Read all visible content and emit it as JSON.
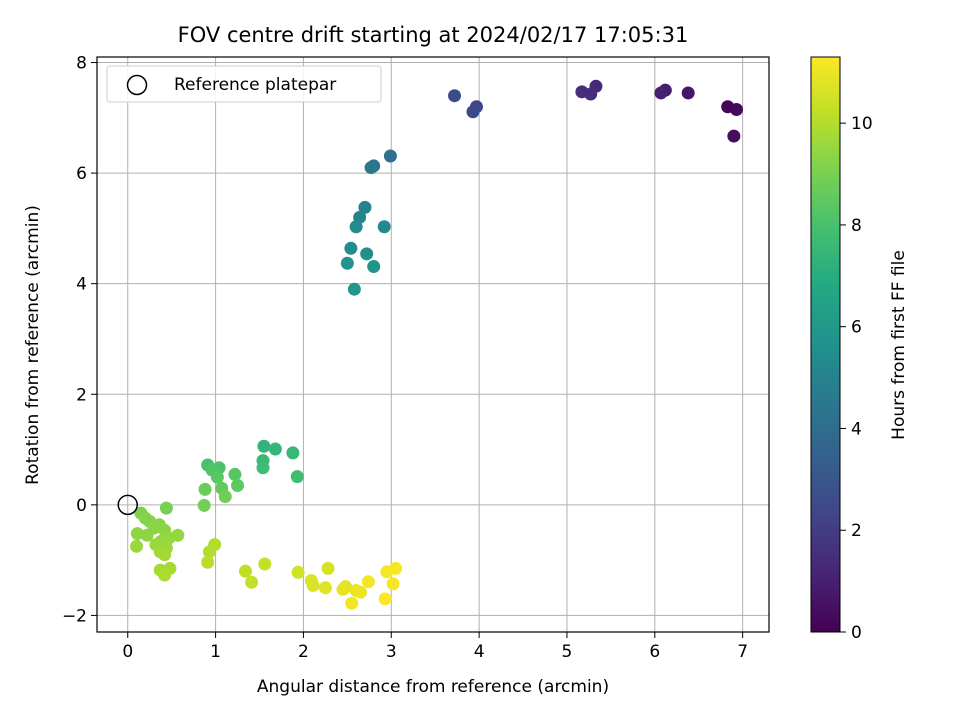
{
  "chart_data": {
    "type": "scatter",
    "title": "FOV centre drift starting at 2024/02/17 17:05:31",
    "xlabel": "Angular distance from reference (arcmin)",
    "ylabel": "Rotation from reference (arcmin)",
    "xlim": [
      -0.35,
      7.3
    ],
    "ylim": [
      -2.3,
      8.1
    ],
    "xticks": [
      0,
      1,
      2,
      3,
      4,
      5,
      6,
      7
    ],
    "yticks": [
      -2,
      0,
      2,
      4,
      6,
      8
    ],
    "grid": true,
    "legend": {
      "placement": "top-left",
      "entries": [
        "Reference platepar"
      ]
    },
    "reference": {
      "x": 0,
      "y": 0,
      "label": "Reference platepar"
    },
    "colorbar": {
      "label": "Hours from first FF file",
      "range": [
        0,
        11.3
      ],
      "ticks": [
        0,
        2,
        4,
        6,
        8,
        10
      ],
      "colormap": "viridis"
    },
    "points": [
      {
        "x": 6.83,
        "y": 7.2,
        "h": 0.2
      },
      {
        "x": 6.93,
        "y": 7.15,
        "h": 0.3
      },
      {
        "x": 6.9,
        "y": 6.67,
        "h": 0.4
      },
      {
        "x": 6.38,
        "y": 7.45,
        "h": 0.7
      },
      {
        "x": 6.12,
        "y": 7.5,
        "h": 0.9
      },
      {
        "x": 6.07,
        "y": 7.45,
        "h": 1.0
      },
      {
        "x": 5.33,
        "y": 7.57,
        "h": 1.3
      },
      {
        "x": 5.27,
        "y": 7.43,
        "h": 1.4
      },
      {
        "x": 5.17,
        "y": 7.47,
        "h": 1.5
      },
      {
        "x": 3.97,
        "y": 7.2,
        "h": 2.4
      },
      {
        "x": 3.93,
        "y": 7.11,
        "h": 2.5
      },
      {
        "x": 3.72,
        "y": 7.4,
        "h": 2.6
      },
      {
        "x": 2.99,
        "y": 6.31,
        "h": 4.2
      },
      {
        "x": 2.8,
        "y": 6.13,
        "h": 4.4
      },
      {
        "x": 2.77,
        "y": 6.1,
        "h": 4.5
      },
      {
        "x": 2.7,
        "y": 5.38,
        "h": 5.0
      },
      {
        "x": 2.64,
        "y": 5.2,
        "h": 5.1
      },
      {
        "x": 2.92,
        "y": 5.03,
        "h": 5.3
      },
      {
        "x": 2.6,
        "y": 5.03,
        "h": 5.4
      },
      {
        "x": 2.54,
        "y": 4.64,
        "h": 5.5
      },
      {
        "x": 2.72,
        "y": 4.54,
        "h": 5.6
      },
      {
        "x": 2.5,
        "y": 4.37,
        "h": 5.7
      },
      {
        "x": 2.8,
        "y": 4.31,
        "h": 5.8
      },
      {
        "x": 2.58,
        "y": 3.9,
        "h": 5.9
      },
      {
        "x": 1.55,
        "y": 1.06,
        "h": 7.3
      },
      {
        "x": 1.68,
        "y": 1.01,
        "h": 7.4
      },
      {
        "x": 1.88,
        "y": 0.94,
        "h": 7.5
      },
      {
        "x": 1.54,
        "y": 0.8,
        "h": 7.6
      },
      {
        "x": 1.54,
        "y": 0.67,
        "h": 7.7
      },
      {
        "x": 1.93,
        "y": 0.51,
        "h": 7.8
      },
      {
        "x": 0.91,
        "y": 0.72,
        "h": 8.0
      },
      {
        "x": 1.04,
        "y": 0.67,
        "h": 8.1
      },
      {
        "x": 0.96,
        "y": 0.63,
        "h": 8.2
      },
      {
        "x": 1.22,
        "y": 0.55,
        "h": 8.3
      },
      {
        "x": 1.02,
        "y": 0.5,
        "h": 8.4
      },
      {
        "x": 1.25,
        "y": 0.35,
        "h": 8.5
      },
      {
        "x": 1.07,
        "y": 0.3,
        "h": 8.6
      },
      {
        "x": 0.88,
        "y": 0.28,
        "h": 8.7
      },
      {
        "x": 1.11,
        "y": 0.15,
        "h": 8.8
      },
      {
        "x": 0.87,
        "y": -0.01,
        "h": 8.9
      },
      {
        "x": 0.44,
        "y": -0.06,
        "h": 9.0
      },
      {
        "x": 0.15,
        "y": -0.15,
        "h": 9.1
      },
      {
        "x": 0.2,
        "y": -0.24,
        "h": 9.2
      },
      {
        "x": 0.25,
        "y": -0.3,
        "h": 9.2
      },
      {
        "x": 0.36,
        "y": -0.36,
        "h": 9.3
      },
      {
        "x": 0.3,
        "y": -0.42,
        "h": 9.3
      },
      {
        "x": 0.42,
        "y": -0.46,
        "h": 9.4
      },
      {
        "x": 0.11,
        "y": -0.52,
        "h": 9.4
      },
      {
        "x": 0.22,
        "y": -0.55,
        "h": 9.4
      },
      {
        "x": 0.57,
        "y": -0.55,
        "h": 9.5
      },
      {
        "x": 0.47,
        "y": -0.6,
        "h": 9.5
      },
      {
        "x": 0.38,
        "y": -0.66,
        "h": 9.5
      },
      {
        "x": 0.32,
        "y": -0.72,
        "h": 9.6
      },
      {
        "x": 0.1,
        "y": -0.75,
        "h": 9.6
      },
      {
        "x": 0.44,
        "y": -0.78,
        "h": 9.6
      },
      {
        "x": 0.37,
        "y": -0.85,
        "h": 9.7
      },
      {
        "x": 0.42,
        "y": -0.9,
        "h": 9.7
      },
      {
        "x": 0.37,
        "y": -1.18,
        "h": 9.8
      },
      {
        "x": 0.48,
        "y": -1.15,
        "h": 9.8
      },
      {
        "x": 0.42,
        "y": -1.27,
        "h": 9.9
      },
      {
        "x": 0.99,
        "y": -0.72,
        "h": 10.0
      },
      {
        "x": 0.93,
        "y": -0.85,
        "h": 10.0
      },
      {
        "x": 0.91,
        "y": -1.04,
        "h": 10.1
      },
      {
        "x": 1.34,
        "y": -1.2,
        "h": 10.2
      },
      {
        "x": 1.41,
        "y": -1.4,
        "h": 10.3
      },
      {
        "x": 1.56,
        "y": -1.07,
        "h": 10.3
      },
      {
        "x": 1.94,
        "y": -1.22,
        "h": 10.5
      },
      {
        "x": 2.28,
        "y": -1.15,
        "h": 10.6
      },
      {
        "x": 2.09,
        "y": -1.37,
        "h": 10.7
      },
      {
        "x": 2.11,
        "y": -1.46,
        "h": 10.7
      },
      {
        "x": 2.25,
        "y": -1.5,
        "h": 10.8
      },
      {
        "x": 2.48,
        "y": -1.48,
        "h": 10.8
      },
      {
        "x": 2.45,
        "y": -1.53,
        "h": 10.9
      },
      {
        "x": 2.6,
        "y": -1.55,
        "h": 11.0
      },
      {
        "x": 2.65,
        "y": -1.58,
        "h": 11.0
      },
      {
        "x": 2.55,
        "y": -1.78,
        "h": 11.1
      },
      {
        "x": 2.74,
        "y": -1.39,
        "h": 11.1
      },
      {
        "x": 2.95,
        "y": -1.21,
        "h": 11.2
      },
      {
        "x": 3.05,
        "y": -1.15,
        "h": 11.2
      },
      {
        "x": 3.02,
        "y": -1.43,
        "h": 11.2
      },
      {
        "x": 2.93,
        "y": -1.7,
        "h": 11.3
      }
    ]
  }
}
